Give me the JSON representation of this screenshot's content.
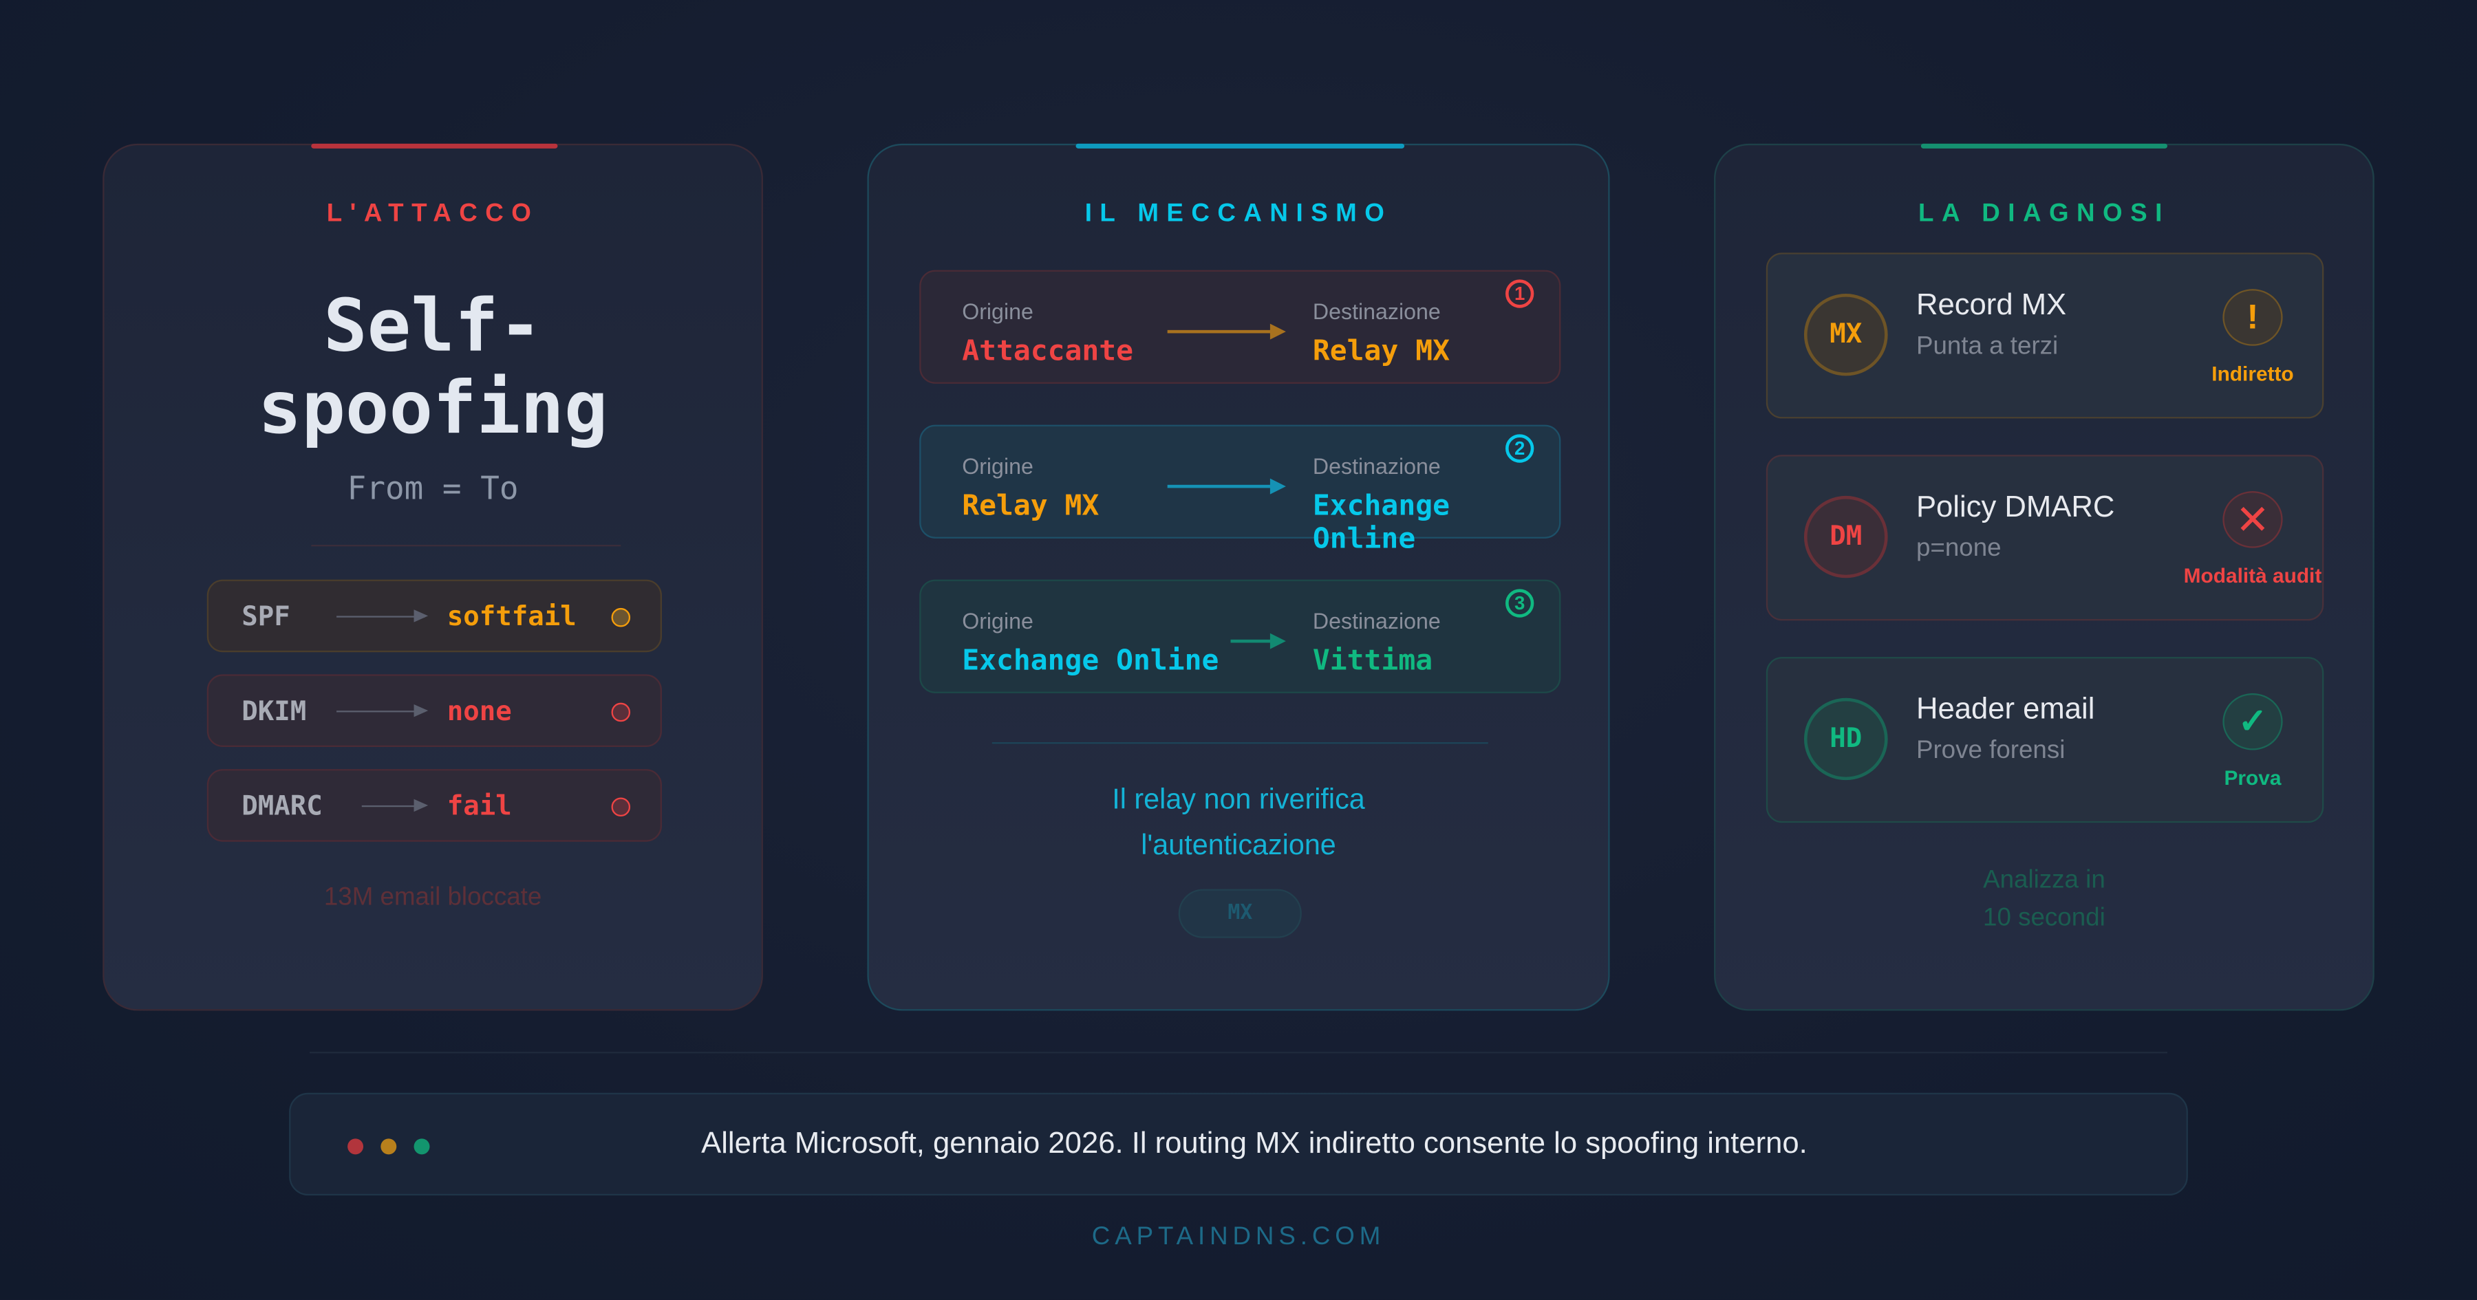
{
  "attack": {
    "title": "L'ATTACCO",
    "headline_1": "Self-",
    "headline_2": "spoofing",
    "subtitle": "From = To",
    "checks": [
      {
        "name": "SPF",
        "result": "softfail",
        "color": "#f59e0b"
      },
      {
        "name": "DKIM",
        "result": "none",
        "color": "#ef4444"
      },
      {
        "name": "DMARC",
        "result": "fail",
        "color": "#ef4444"
      }
    ],
    "footer": "13M email bloccate",
    "accent": "#ef4444"
  },
  "mechanism": {
    "title": "IL MECCANISMO",
    "accent": "#06b6d4",
    "steps": [
      {
        "num": "1",
        "origin_label": "Origine",
        "origin": "Attaccante",
        "dest_label": "Destinazione",
        "dest": "Relay MX"
      },
      {
        "num": "2",
        "origin_label": "Origine",
        "origin": "Relay MX",
        "dest_label": "Destinazione",
        "dest": "Exchange Online"
      },
      {
        "num": "3",
        "origin_label": "Origine",
        "origin": "Exchange Online",
        "dest_label": "Destinazione",
        "dest": "Vittima"
      }
    ],
    "note_1": "Il relay non riverifica",
    "note_2": "l'autenticazione",
    "pill": "MX"
  },
  "diagnosis": {
    "title": "LA DIAGNOSI",
    "accent": "#10b981",
    "items": [
      {
        "badge": "MX",
        "title": "Record MX",
        "sub": "Punta a terzi",
        "status": "Indiretto",
        "status_icon": "warning-icon"
      },
      {
        "badge": "DM",
        "title": "Policy DMARC",
        "sub": "p=none",
        "status": "Modalità audit",
        "status_icon": "x-icon"
      },
      {
        "badge": "HD",
        "title": "Header email",
        "sub": "Prove forensi",
        "status": "Prova",
        "status_icon": "check-icon"
      }
    ],
    "footer_1": "Analizza in",
    "footer_2": "10 secondi"
  },
  "alert": {
    "text": "Allerta Microsoft, gennaio 2026. Il routing MX indiretto consente lo spoofing interno."
  },
  "brand": "CAPTAINDNS.COM"
}
